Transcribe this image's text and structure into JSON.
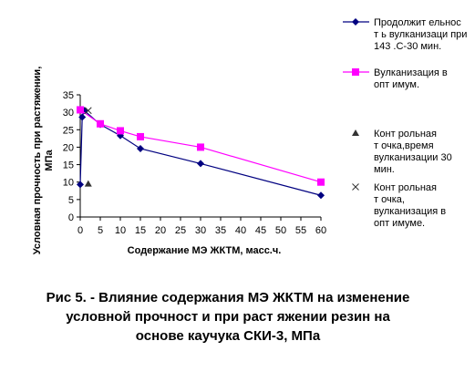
{
  "chart_data": {
    "type": "line",
    "title": "",
    "xlabel": "Содержание МЭ ЖКТМ, масс.ч.",
    "ylabel": [
      "Условная прочность при растяжении,",
      "МПа"
    ],
    "xlim": [
      0,
      60
    ],
    "ylim": [
      0,
      35
    ],
    "xticks": [
      "0",
      "5",
      "10",
      "15",
      "20",
      "25",
      "30",
      "35",
      "40",
      "45",
      "50",
      "55",
      "60"
    ],
    "yticks": [
      "0",
      "5",
      "10",
      "15",
      "20",
      "25",
      "30",
      "35"
    ],
    "grid": false,
    "legend_position": "right",
    "series": [
      {
        "name": [
          "Продолжит ельнос",
          "т ь вулканизаци при",
          "143 .С-30 мин."
        ],
        "marker": "diamond",
        "color": "#000080",
        "x": [
          0,
          0.5,
          1,
          5,
          10,
          15,
          30,
          60
        ],
        "y": [
          9.3,
          28.6,
          30.5,
          26.5,
          23.3,
          19.6,
          15.3,
          6.2
        ]
      },
      {
        "name": [
          "Вулканизация в",
          "опт имум."
        ],
        "marker": "square",
        "color": "#ff00ff",
        "x": [
          0,
          5,
          10,
          15,
          30,
          60
        ],
        "y": [
          30.7,
          26.7,
          24.7,
          23.0,
          20.0,
          10.0
        ]
      },
      {
        "name": [
          "Конт рольная",
          "т очка,время",
          "вулканизации 30",
          "мин."
        ],
        "marker": "triangle",
        "color": "#333333",
        "x": [
          2
        ],
        "y": [
          9.5
        ]
      },
      {
        "name": [
          "Конт рольная",
          "т очка,",
          "вулканизация в",
          "опт имуме."
        ],
        "marker": "x",
        "color": "#333333",
        "x": [
          2
        ],
        "y": [
          30.5
        ]
      }
    ]
  },
  "caption": [
    "Рис 5. - Влияние содержания МЭ ЖКТМ на изменение",
    "условной прочност  и при раст  яжении резин на",
    "основе каучука СКИ-3, МПа"
  ]
}
